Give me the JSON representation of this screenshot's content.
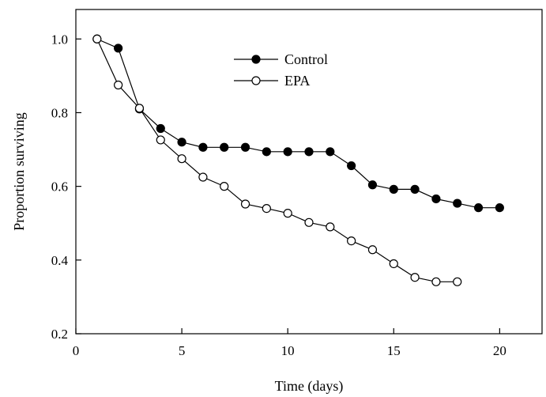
{
  "chart_data": {
    "type": "line",
    "xlabel": "Time (days)",
    "ylabel": "Proportion surviving",
    "xlim": [
      0,
      22
    ],
    "ylim": [
      0.2,
      1.08
    ],
    "xticks": [
      0,
      5,
      10,
      15,
      20
    ],
    "yticks": [
      0.2,
      0.4,
      0.6,
      0.8,
      1.0
    ],
    "xtick_labels": [
      "0",
      "5",
      "10",
      "15",
      "20"
    ],
    "ytick_labels": [
      "0.2",
      "0.4",
      "0.6",
      "0.8",
      "1.0"
    ],
    "legend_position": "top-center",
    "grid": false,
    "series": [
      {
        "name": "Control",
        "marker": "filled-circle",
        "color": "#000000",
        "x": [
          1,
          2,
          3,
          4,
          5,
          6,
          7,
          8,
          9,
          10,
          11,
          12,
          13,
          14,
          15,
          16,
          17,
          18,
          19,
          20
        ],
        "y": [
          1.0,
          0.975,
          0.81,
          0.757,
          0.72,
          0.706,
          0.706,
          0.706,
          0.694,
          0.694,
          0.694,
          0.694,
          0.656,
          0.604,
          0.592,
          0.592,
          0.566,
          0.554,
          0.542,
          0.542
        ]
      },
      {
        "name": "EPA",
        "marker": "open-circle",
        "color": "#000000",
        "x": [
          1,
          2,
          3,
          4,
          5,
          6,
          7,
          8,
          9,
          10,
          11,
          12,
          13,
          14,
          15,
          16,
          17,
          18
        ],
        "y": [
          1.0,
          0.875,
          0.812,
          0.726,
          0.675,
          0.625,
          0.6,
          0.552,
          0.54,
          0.527,
          0.502,
          0.49,
          0.452,
          0.428,
          0.39,
          0.353,
          0.341,
          0.341
        ]
      }
    ]
  }
}
